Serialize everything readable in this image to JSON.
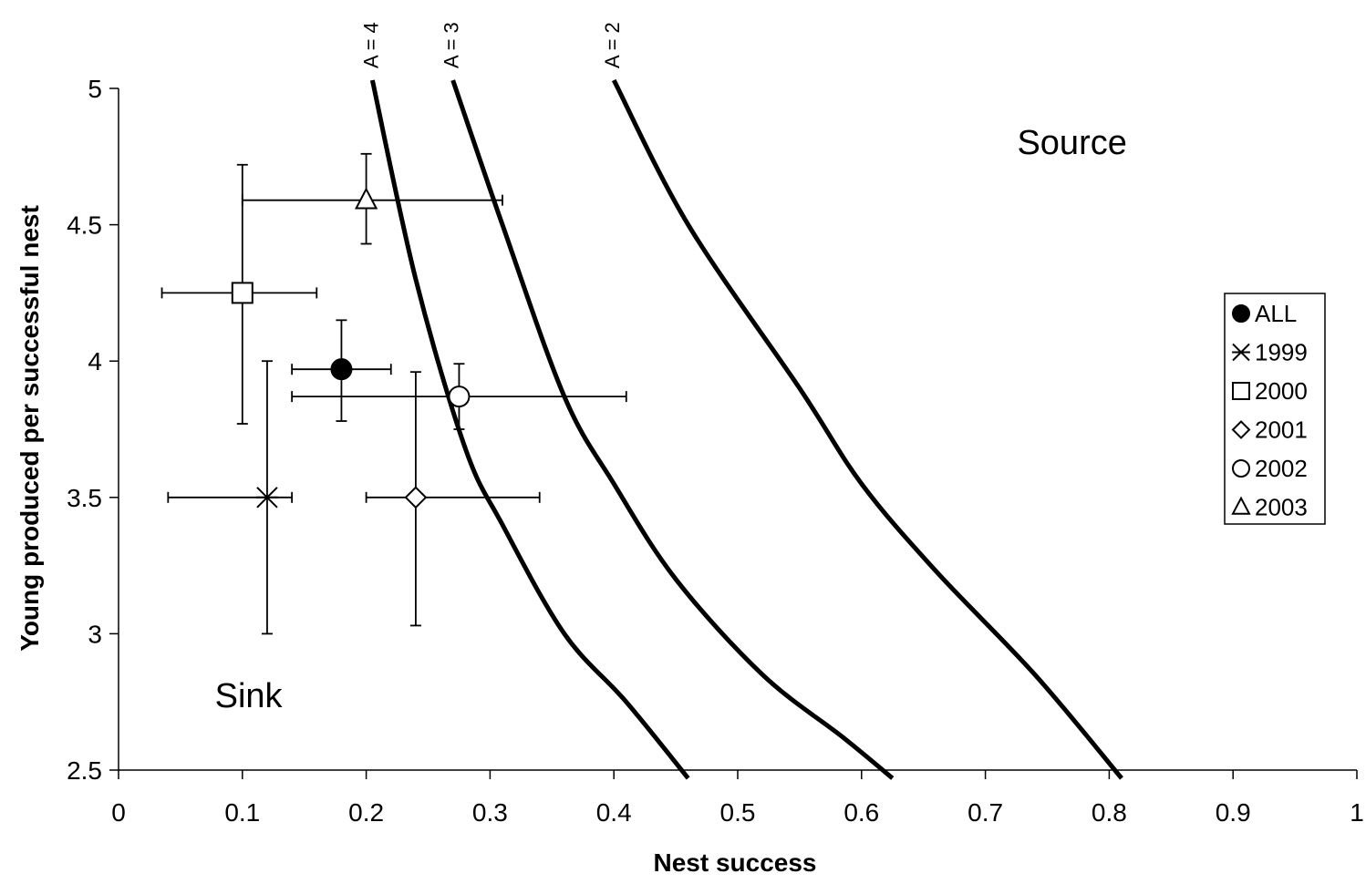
{
  "chart_data": {
    "type": "scatter",
    "title": "",
    "xlabel": "Nest success",
    "ylabel": "Young produced per successful nest",
    "xlim": [
      0,
      1
    ],
    "ylim": [
      2.5,
      5
    ],
    "x_ticks": [
      "0",
      "0.1",
      "0.2",
      "0.3",
      "0.4",
      "0.5",
      "0.6",
      "0.7",
      "0.8",
      "0.9",
      "1"
    ],
    "x_tick_values": [
      0,
      0.1,
      0.2,
      0.3,
      0.4,
      0.5,
      0.6,
      0.7,
      0.8,
      0.9,
      1
    ],
    "y_ticks": [
      "2.5",
      "3",
      "3.5",
      "4",
      "4.5",
      "5"
    ],
    "y_tick_values": [
      2.5,
      3,
      3.5,
      4,
      4.5,
      5
    ],
    "grid": false,
    "legend_position": "right",
    "series": [
      {
        "name": "ALL",
        "marker": "filled-circle",
        "x": 0.18,
        "y": 3.97,
        "x_err": [
          0.14,
          0.22
        ],
        "y_err": [
          3.78,
          4.15
        ]
      },
      {
        "name": "1999",
        "marker": "asterisk",
        "x": 0.12,
        "y": 3.5,
        "x_err": [
          0.04,
          0.14
        ],
        "y_err": [
          3.0,
          4.0
        ]
      },
      {
        "name": "2000",
        "marker": "square",
        "x": 0.1,
        "y": 4.25,
        "x_err": [
          0.035,
          0.16
        ],
        "y_err": [
          3.77,
          4.72
        ]
      },
      {
        "name": "2001",
        "marker": "diamond",
        "x": 0.24,
        "y": 3.5,
        "x_err": [
          0.2,
          0.34
        ],
        "y_err": [
          3.03,
          3.96
        ]
      },
      {
        "name": "2002",
        "marker": "circle",
        "x": 0.275,
        "y": 3.87,
        "x_err": [
          0.14,
          0.41
        ],
        "y_err": [
          3.75,
          3.99
        ]
      },
      {
        "name": "2003",
        "marker": "triangle",
        "x": 0.2,
        "y": 4.59,
        "x_err": [
          0.1,
          0.31
        ],
        "y_err": [
          4.43,
          4.76
        ]
      }
    ],
    "curves": [
      {
        "label": "A = 4",
        "points": [
          [
            0.205,
            5.03
          ],
          [
            0.24,
            4.3
          ],
          [
            0.28,
            3.68
          ],
          [
            0.31,
            3.4
          ],
          [
            0.36,
            3.0
          ],
          [
            0.41,
            2.75
          ],
          [
            0.46,
            2.47
          ]
        ]
      },
      {
        "label": "A = 3",
        "points": [
          [
            0.27,
            5.03
          ],
          [
            0.31,
            4.5
          ],
          [
            0.36,
            3.87
          ],
          [
            0.4,
            3.55
          ],
          [
            0.45,
            3.2
          ],
          [
            0.52,
            2.85
          ],
          [
            0.585,
            2.62
          ],
          [
            0.625,
            2.47
          ]
        ]
      },
      {
        "label": "A = 2",
        "points": [
          [
            0.4,
            5.03
          ],
          [
            0.46,
            4.5
          ],
          [
            0.55,
            3.9
          ],
          [
            0.6,
            3.55
          ],
          [
            0.66,
            3.23
          ],
          [
            0.74,
            2.85
          ],
          [
            0.81,
            2.47
          ]
        ]
      }
    ],
    "annotations": [
      {
        "text": "Source",
        "x": 0.77,
        "y": 4.76
      },
      {
        "text": "Sink",
        "x": 0.105,
        "y": 2.73
      }
    ]
  },
  "legend": {
    "entries": [
      "ALL",
      "1999",
      "2000",
      "2001",
      "2002",
      "2003"
    ]
  }
}
